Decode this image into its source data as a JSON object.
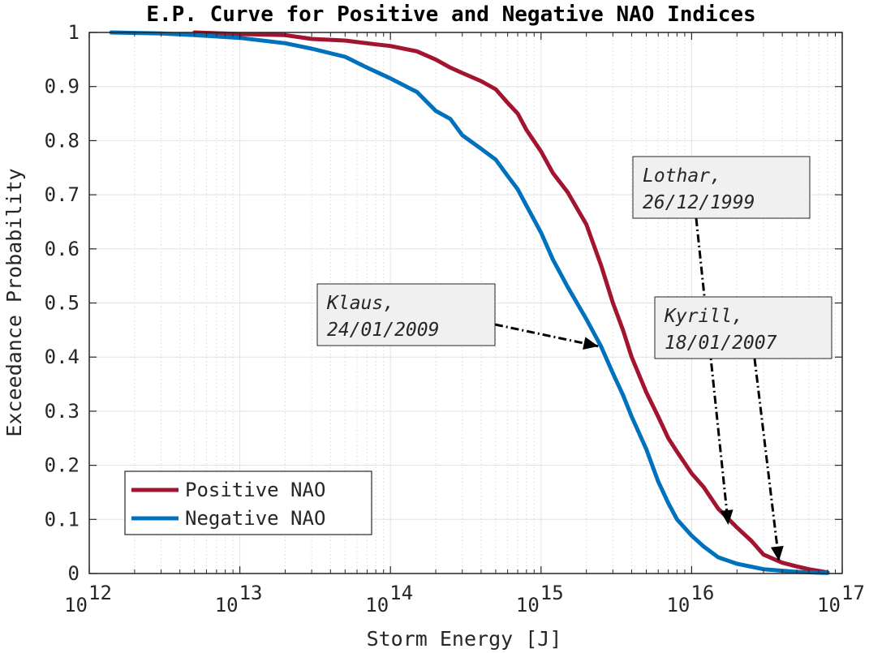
{
  "chart_data": {
    "type": "line",
    "title": "E.P. Curve for Positive and Negative NAO Indices",
    "xlabel": "Storm Energy [J]",
    "ylabel": "Exceedance Probability",
    "xscale": "log",
    "xlim": [
      1000000000000.0,
      1e+17
    ],
    "ylim": [
      0,
      1
    ],
    "xticks": [
      {
        "value": 1000000000000.0,
        "base": "10",
        "exp": "12"
      },
      {
        "value": 10000000000000.0,
        "base": "10",
        "exp": "13"
      },
      {
        "value": 100000000000000.0,
        "base": "10",
        "exp": "14"
      },
      {
        "value": 1000000000000000.0,
        "base": "10",
        "exp": "15"
      },
      {
        "value": 1e+16,
        "base": "10",
        "exp": "16"
      },
      {
        "value": 1e+17,
        "base": "10",
        "exp": "17"
      }
    ],
    "yticks": [
      {
        "value": 0,
        "label": "0"
      },
      {
        "value": 0.1,
        "label": "0.1"
      },
      {
        "value": 0.2,
        "label": "0.2"
      },
      {
        "value": 0.3,
        "label": "0.3"
      },
      {
        "value": 0.4,
        "label": "0.4"
      },
      {
        "value": 0.5,
        "label": "0.5"
      },
      {
        "value": 0.6,
        "label": "0.6"
      },
      {
        "value": 0.7,
        "label": "0.7"
      },
      {
        "value": 0.8,
        "label": "0.8"
      },
      {
        "value": 0.9,
        "label": "0.9"
      },
      {
        "value": 1,
        "label": "1"
      }
    ],
    "grid": true,
    "legend_position": "bottom-left",
    "series": [
      {
        "name": "Positive NAO",
        "color": "#A2142F",
        "x": [
          5000000000000.0,
          10000000000000.0,
          20000000000000.0,
          30000000000000.0,
          50000000000000.0,
          80000000000000.0,
          100000000000000.0,
          150000000000000.0,
          200000000000000.0,
          250000000000000.0,
          300000000000000.0,
          400000000000000.0,
          500000000000000.0,
          600000000000000.0,
          700000000000000.0,
          800000000000000.0,
          1000000000000000.0,
          1200000000000000.0,
          1500000000000000.0,
          2000000000000000.0,
          2500000000000000.0,
          3000000000000000.0,
          3500000000000000.0,
          4000000000000000.0,
          5000000000000000.0,
          6000000000000000.0,
          7000000000000000.0,
          8000000000000000.0,
          1e+16,
          1.2e+16,
          1.5e+16,
          2e+16,
          2.5e+16,
          3e+16,
          4e+16,
          5e+16,
          6e+16,
          8e+16
        ],
        "y": [
          1,
          0.997,
          0.995,
          0.988,
          0.985,
          0.978,
          0.975,
          0.965,
          0.95,
          0.935,
          0.925,
          0.91,
          0.895,
          0.87,
          0.85,
          0.82,
          0.78,
          0.74,
          0.705,
          0.645,
          0.57,
          0.5,
          0.45,
          0.4,
          0.335,
          0.29,
          0.25,
          0.225,
          0.185,
          0.16,
          0.12,
          0.085,
          0.06,
          0.035,
          0.02,
          0.013,
          0.008,
          0.002
        ]
      },
      {
        "name": "Negative NAO",
        "color": "#0072BD",
        "x": [
          1400000000000.0,
          3000000000000.0,
          5000000000000.0,
          10000000000000.0,
          20000000000000.0,
          30000000000000.0,
          50000000000000.0,
          70000000000000.0,
          100000000000000.0,
          150000000000000.0,
          200000000000000.0,
          250000000000000.0,
          300000000000000.0,
          400000000000000.0,
          500000000000000.0,
          600000000000000.0,
          700000000000000.0,
          800000000000000.0,
          1000000000000000.0,
          1200000000000000.0,
          1500000000000000.0,
          2000000000000000.0,
          2500000000000000.0,
          3000000000000000.0,
          3500000000000000.0,
          4000000000000000.0,
          5000000000000000.0,
          6000000000000000.0,
          7000000000000000.0,
          8000000000000000.0,
          1e+16,
          1.2e+16,
          1.5e+16,
          2e+16,
          3e+16,
          5e+16,
          8e+16
        ],
        "y": [
          1,
          0.998,
          0.995,
          0.99,
          0.98,
          0.97,
          0.955,
          0.935,
          0.915,
          0.89,
          0.855,
          0.84,
          0.81,
          0.785,
          0.765,
          0.735,
          0.71,
          0.68,
          0.63,
          0.58,
          0.53,
          0.47,
          0.42,
          0.37,
          0.33,
          0.29,
          0.23,
          0.17,
          0.13,
          0.1,
          0.07,
          0.05,
          0.03,
          0.018,
          0.008,
          0.003,
          0.001
        ]
      }
    ],
    "annotations": [
      {
        "name": "klaus",
        "lines": [
          "Klaus,",
          "24/01/2009"
        ],
        "target": [
          2400000000000000.0,
          0.42
        ]
      },
      {
        "name": "lothar",
        "lines": [
          "Lothar,",
          "26/12/1999"
        ],
        "target": [
          1.75e+16,
          0.09
        ]
      },
      {
        "name": "kyrill",
        "lines": [
          "Kyrill,",
          "18/01/2007"
        ],
        "target": [
          3.8e+16,
          0.023
        ]
      }
    ]
  }
}
